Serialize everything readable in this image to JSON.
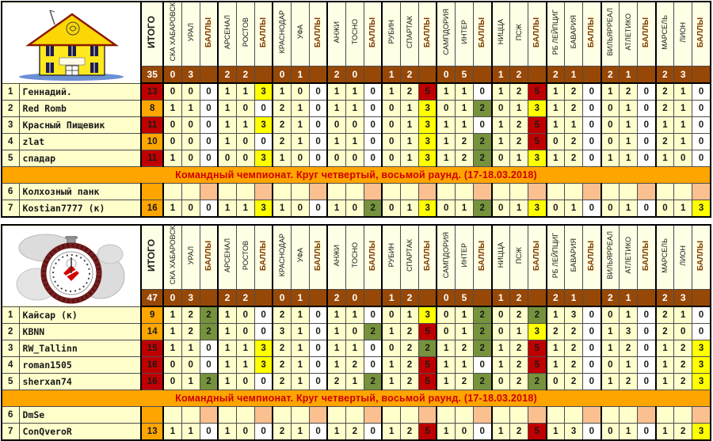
{
  "banner_text": "Командный чемпионат. Круг четвертый, восьмой раунд. (17-18.03.2018)",
  "header": {
    "total_label": "ИТОГО",
    "points_label": "БАЛЛЫ",
    "matches": [
      {
        "home": "СКА ХАБАРОВСК",
        "away": "УРАЛ",
        "score": [
          "0",
          "3"
        ]
      },
      {
        "home": "АРСЕНАЛ",
        "away": "РОСТОВ",
        "score": [
          "2",
          "2"
        ]
      },
      {
        "home": "КРАСНОДАР",
        "away": "УФА",
        "score": [
          "0",
          "1"
        ]
      },
      {
        "home": "АНЖИ",
        "away": "ТОСНО",
        "score": [
          "2",
          "0"
        ]
      },
      {
        "home": "РУБИН",
        "away": "СПАРТАК",
        "score": [
          "1",
          "2"
        ]
      },
      {
        "home": "САМПДОРИЯ",
        "away": "ИНТЕР",
        "score": [
          "0",
          "5"
        ]
      },
      {
        "home": "НИЦЦА",
        "away": "ПСЖ",
        "score": [
          "1",
          "2"
        ]
      },
      {
        "home": "РБ ЛЕЙПЦИГ",
        "away": "БАВАРИЯ",
        "score": [
          "2",
          "1"
        ]
      },
      {
        "home": "ВИЛЬЯРРЕАЛ",
        "away": "АТЛЕТИКО",
        "score": [
          "2",
          "1"
        ]
      },
      {
        "home": "МАРСЕЛЬ",
        "away": "ЛИОН",
        "score": [
          "2",
          "3"
        ]
      }
    ]
  },
  "colors": {
    "accent_orange": "#FFA500",
    "tan": "#FAC090",
    "brown": "#974806",
    "red": "#C00000",
    "green": "#76923C",
    "yellow": "#FFFF00",
    "cream": "#FFFFCC",
    "blue_zero": "#0070C0",
    "banner_text": "#CC0000"
  },
  "tables": [
    {
      "logo": "house-team-logo",
      "team_total": "35",
      "banner_index": 5,
      "rows": [
        {
          "rank": "1",
          "name": "Геннадий.",
          "name_style": "plain",
          "total": "13",
          "total_style": "red",
          "groups": [
            [
              "0",
              "0",
              "0",
              "z"
            ],
            [
              "1",
              "1",
              "3",
              "y"
            ],
            [
              "1",
              "0",
              "0",
              "z"
            ],
            [
              "1",
              "1",
              "0",
              "z"
            ],
            [
              "1",
              "2",
              "5",
              "r"
            ],
            [
              "1",
              "1",
              "0",
              "z"
            ],
            [
              "1",
              "2",
              "5",
              "r"
            ],
            [
              "1",
              "2",
              "0",
              "z"
            ],
            [
              "1",
              "2",
              "0",
              "z"
            ],
            [
              "2",
              "1",
              "0",
              "z"
            ]
          ]
        },
        {
          "rank": "2",
          "name": "Red Romb",
          "name_style": "plain",
          "total": "8",
          "total_style": "orange",
          "groups": [
            [
              "1",
              "1",
              "0",
              "z"
            ],
            [
              "1",
              "0",
              "0",
              "z"
            ],
            [
              "2",
              "1",
              "0",
              "z"
            ],
            [
              "1",
              "1",
              "0",
              "z"
            ],
            [
              "0",
              "1",
              "3",
              "y"
            ],
            [
              "0",
              "1",
              "2",
              "g"
            ],
            [
              "0",
              "1",
              "3",
              "y"
            ],
            [
              "1",
              "2",
              "0",
              "z"
            ],
            [
              "0",
              "1",
              "0",
              "z"
            ],
            [
              "2",
              "1",
              "0",
              "z"
            ]
          ]
        },
        {
          "rank": "3",
          "name": "Красный Пищевик",
          "name_style": "plain",
          "total": "11",
          "total_style": "red",
          "groups": [
            [
              "0",
              "0",
              "0",
              "z"
            ],
            [
              "1",
              "1",
              "3",
              "y"
            ],
            [
              "2",
              "1",
              "0",
              "z"
            ],
            [
              "0",
              "0",
              "0",
              "z"
            ],
            [
              "0",
              "1",
              "3",
              "y"
            ],
            [
              "1",
              "1",
              "0",
              "z"
            ],
            [
              "1",
              "2",
              "5",
              "r"
            ],
            [
              "1",
              "1",
              "0",
              "z"
            ],
            [
              "0",
              "1",
              "0",
              "z"
            ],
            [
              "1",
              "1",
              "0",
              "z"
            ]
          ]
        },
        {
          "rank": "4",
          "name": "zlat",
          "name_style": "plain",
          "total": "10",
          "total_style": "orange",
          "groups": [
            [
              "0",
              "0",
              "0",
              "z"
            ],
            [
              "1",
              "0",
              "0",
              "z"
            ],
            [
              "2",
              "1",
              "0",
              "z"
            ],
            [
              "1",
              "1",
              "0",
              "z"
            ],
            [
              "0",
              "1",
              "3",
              "y"
            ],
            [
              "1",
              "2",
              "2",
              "g"
            ],
            [
              "1",
              "2",
              "5",
              "r"
            ],
            [
              "0",
              "2",
              "0",
              "z"
            ],
            [
              "0",
              "1",
              "0",
              "z"
            ],
            [
              "2",
              "1",
              "0",
              "z"
            ]
          ]
        },
        {
          "rank": "5",
          "name": "спадар",
          "name_style": "plain",
          "total": "11",
          "total_style": "red",
          "groups": [
            [
              "1",
              "0",
              "0",
              "z"
            ],
            [
              "0",
              "0",
              "3",
              "y"
            ],
            [
              "1",
              "0",
              "0",
              "z"
            ],
            [
              "0",
              "0",
              "0",
              "z"
            ],
            [
              "0",
              "1",
              "3",
              "y"
            ],
            [
              "1",
              "2",
              "2",
              "g"
            ],
            [
              "0",
              "1",
              "3",
              "y"
            ],
            [
              "1",
              "2",
              "0",
              "z"
            ],
            [
              "1",
              "1",
              "0",
              "z"
            ],
            [
              "1",
              "0",
              "0",
              "z"
            ]
          ]
        },
        {
          "rank": "6",
          "name": "Колхозный панк",
          "name_style": "darkred",
          "total": "",
          "total_style": "blank",
          "groups": [
            [
              "",
              "",
              "",
              "e"
            ],
            [
              "",
              "",
              "",
              "e"
            ],
            [
              "",
              "",
              "",
              "e"
            ],
            [
              "",
              "",
              "",
              "e"
            ],
            [
              "",
              "",
              "",
              "e"
            ],
            [
              "",
              "",
              "",
              "e"
            ],
            [
              "",
              "",
              "",
              "e"
            ],
            [
              "",
              "",
              "",
              "e"
            ],
            [
              "",
              "",
              "",
              "e"
            ],
            [
              "",
              "",
              "",
              "e"
            ]
          ]
        },
        {
          "rank": "7",
          "name": "Kostian7777 (к)",
          "name_style": "red",
          "total": "16",
          "total_style": "orange",
          "groups": [
            [
              "1",
              "0",
              "0",
              "z"
            ],
            [
              "1",
              "1",
              "3",
              "y"
            ],
            [
              "1",
              "0",
              "0",
              "z"
            ],
            [
              "1",
              "0",
              "2",
              "g"
            ],
            [
              "0",
              "1",
              "3",
              "y"
            ],
            [
              "0",
              "1",
              "2",
              "g"
            ],
            [
              "0",
              "1",
              "3",
              "y"
            ],
            [
              "0",
              "1",
              "0",
              "z"
            ],
            [
              "0",
              "1",
              "0",
              "z"
            ],
            [
              "0",
              "1",
              "3",
              "y"
            ]
          ]
        }
      ]
    },
    {
      "logo": "stopwatch-team-logo",
      "team_total": "47",
      "banner_index": 5,
      "rows": [
        {
          "rank": "1",
          "name": "Кайсар (к)",
          "name_style": "plain",
          "total": "9",
          "total_style": "orange",
          "groups": [
            [
              "1",
              "2",
              "2",
              "g"
            ],
            [
              "1",
              "0",
              "0",
              "z"
            ],
            [
              "2",
              "1",
              "0",
              "z"
            ],
            [
              "1",
              "1",
              "0",
              "z"
            ],
            [
              "0",
              "1",
              "3",
              "y"
            ],
            [
              "0",
              "1",
              "2",
              "g"
            ],
            [
              "0",
              "2",
              "2",
              "g"
            ],
            [
              "1",
              "3",
              "0",
              "z"
            ],
            [
              "0",
              "1",
              "0",
              "z"
            ],
            [
              "2",
              "1",
              "0",
              "z"
            ]
          ]
        },
        {
          "rank": "2",
          "name": "KBNN",
          "name_style": "plain",
          "total": "14",
          "total_style": "orange",
          "groups": [
            [
              "1",
              "2",
              "2",
              "g"
            ],
            [
              "1",
              "0",
              "0",
              "z"
            ],
            [
              "3",
              "1",
              "0",
              "z"
            ],
            [
              "1",
              "0",
              "2",
              "g"
            ],
            [
              "1",
              "2",
              "5",
              "r"
            ],
            [
              "0",
              "1",
              "2",
              "g"
            ],
            [
              "0",
              "1",
              "3",
              "y"
            ],
            [
              "2",
              "2",
              "0",
              "z"
            ],
            [
              "1",
              "3",
              "0",
              "z"
            ],
            [
              "2",
              "0",
              "0",
              "z"
            ]
          ]
        },
        {
          "rank": "3",
          "name": "RW_Tallinn",
          "name_style": "plain",
          "total": "15",
          "total_style": "red",
          "groups": [
            [
              "1",
              "1",
              "0",
              "z"
            ],
            [
              "1",
              "1",
              "3",
              "y"
            ],
            [
              "2",
              "1",
              "0",
              "z"
            ],
            [
              "1",
              "1",
              "0",
              "z"
            ],
            [
              "0",
              "2",
              "2",
              "g"
            ],
            [
              "1",
              "2",
              "2",
              "g"
            ],
            [
              "1",
              "2",
              "5",
              "r"
            ],
            [
              "1",
              "2",
              "0",
              "z"
            ],
            [
              "1",
              "2",
              "0",
              "z"
            ],
            [
              "1",
              "2",
              "3",
              "y"
            ]
          ]
        },
        {
          "rank": "4",
          "name": "roman1505",
          "name_style": "plain",
          "total": "16",
          "total_style": "red",
          "groups": [
            [
              "0",
              "0",
              "0",
              "z"
            ],
            [
              "1",
              "1",
              "3",
              "y"
            ],
            [
              "2",
              "1",
              "0",
              "z"
            ],
            [
              "1",
              "2",
              "0",
              "z"
            ],
            [
              "1",
              "2",
              "5",
              "r"
            ],
            [
              "1",
              "1",
              "0",
              "z"
            ],
            [
              "1",
              "2",
              "5",
              "r"
            ],
            [
              "1",
              "2",
              "0",
              "z"
            ],
            [
              "0",
              "1",
              "0",
              "z"
            ],
            [
              "1",
              "2",
              "3",
              "y"
            ]
          ]
        },
        {
          "rank": "5",
          "name": "sherxan74",
          "name_style": "plain",
          "total": "16",
          "total_style": "red",
          "groups": [
            [
              "0",
              "1",
              "2",
              "g"
            ],
            [
              "1",
              "0",
              "0",
              "z"
            ],
            [
              "2",
              "1",
              "0",
              "z"
            ],
            [
              "2",
              "1",
              "2",
              "g"
            ],
            [
              "1",
              "2",
              "5",
              "r"
            ],
            [
              "1",
              "2",
              "2",
              "g"
            ],
            [
              "0",
              "2",
              "2",
              "g"
            ],
            [
              "0",
              "2",
              "0",
              "z"
            ],
            [
              "1",
              "2",
              "0",
              "z"
            ],
            [
              "1",
              "2",
              "3",
              "y"
            ]
          ]
        },
        {
          "rank": "6",
          "name": "DmSe",
          "name_style": "darkred",
          "total": "",
          "total_style": "blank",
          "groups": [
            [
              "",
              "",
              "",
              "e"
            ],
            [
              "",
              "",
              "",
              "e"
            ],
            [
              "",
              "",
              "",
              "e"
            ],
            [
              "",
              "",
              "",
              "e"
            ],
            [
              "",
              "",
              "",
              "e"
            ],
            [
              "",
              "",
              "",
              "e"
            ],
            [
              "",
              "",
              "",
              "e"
            ],
            [
              "",
              "",
              "",
              "e"
            ],
            [
              "",
              "",
              "",
              "e"
            ],
            [
              "",
              "",
              "",
              "e"
            ]
          ]
        },
        {
          "rank": "7",
          "name": "ConQveroR",
          "name_style": "red",
          "total": "13",
          "total_style": "orange",
          "groups": [
            [
              "1",
              "1",
              "0",
              "z"
            ],
            [
              "1",
              "0",
              "0",
              "z"
            ],
            [
              "2",
              "1",
              "0",
              "z"
            ],
            [
              "1",
              "2",
              "0",
              "z"
            ],
            [
              "1",
              "2",
              "5",
              "r"
            ],
            [
              "1",
              "0",
              "0",
              "z"
            ],
            [
              "1",
              "2",
              "5",
              "r"
            ],
            [
              "1",
              "3",
              "0",
              "z"
            ],
            [
              "0",
              "1",
              "0",
              "z"
            ],
            [
              "1",
              "2",
              "3",
              "y"
            ]
          ]
        }
      ]
    }
  ]
}
